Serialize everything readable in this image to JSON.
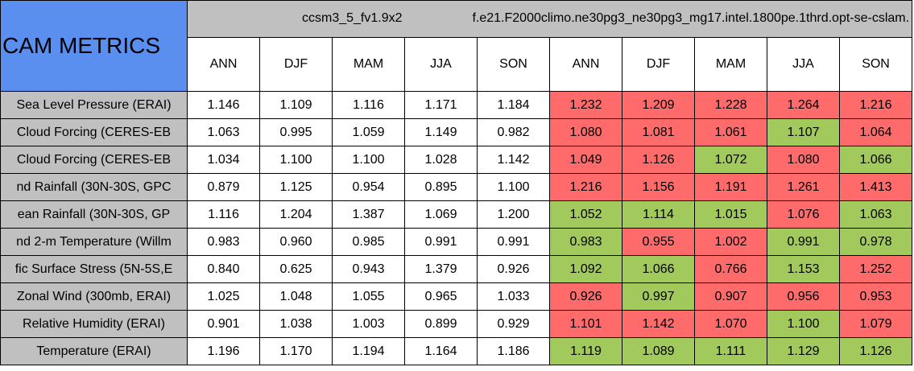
{
  "header": {
    "title": "CAM METRICS",
    "cases": [
      "ccsm3_5_fv1.9x2",
      "f.e21.F2000climo.ne30pg3_ne30pg3_mg17.intel.1800pe.1thrd.opt-se-cslam."
    ],
    "seasons": [
      "ANN",
      "DJF",
      "MAM",
      "JJA",
      "SON",
      "ANN",
      "DJF",
      "MAM",
      "JJA",
      "SON"
    ]
  },
  "table": {
    "rows": [
      {
        "label": "Sea Level Pressure (ERAI)",
        "values": [
          "1.146",
          "1.109",
          "1.116",
          "1.171",
          "1.184",
          "1.232",
          "1.209",
          "1.228",
          "1.264",
          "1.216"
        ],
        "colors": [
          "#ff6b6b",
          "#ff6b6b",
          "#ff6b6b",
          "#ff6b6b",
          "#ff6b6b"
        ]
      },
      {
        "label": "Cloud Forcing (CERES-EB",
        "values": [
          "1.063",
          "0.995",
          "1.059",
          "1.149",
          "0.982",
          "1.080",
          "1.081",
          "1.061",
          "1.107",
          "1.064"
        ],
        "colors": [
          "#ff6b6b",
          "#ff6b6b",
          "#ff6b6b",
          "#a2c95b",
          "#ff6b6b"
        ]
      },
      {
        "label": "Cloud Forcing (CERES-EB",
        "values": [
          "1.034",
          "1.100",
          "1.100",
          "1.028",
          "1.142",
          "1.049",
          "1.126",
          "1.072",
          "1.080",
          "1.066"
        ],
        "colors": [
          "#ff6b6b",
          "#ff6b6b",
          "#a2c95b",
          "#ff6b6b",
          "#a2c95b"
        ]
      },
      {
        "label": "nd Rainfall (30N-30S, GPC",
        "values": [
          "0.879",
          "1.125",
          "0.954",
          "0.895",
          "1.100",
          "1.216",
          "1.156",
          "1.191",
          "1.261",
          "1.413"
        ],
        "colors": [
          "#ff6b6b",
          "#ff6b6b",
          "#ff6b6b",
          "#ff6b6b",
          "#ff6b6b"
        ]
      },
      {
        "label": "ean Rainfall (30N-30S, GP",
        "values": [
          "1.116",
          "1.204",
          "1.387",
          "1.069",
          "1.200",
          "1.052",
          "1.114",
          "1.015",
          "1.076",
          "1.063"
        ],
        "colors": [
          "#a2c95b",
          "#a2c95b",
          "#a2c95b",
          "#ff6b6b",
          "#a2c95b"
        ]
      },
      {
        "label": "nd 2-m Temperature (Willm",
        "values": [
          "0.983",
          "0.960",
          "0.985",
          "0.991",
          "0.991",
          "0.983",
          "0.955",
          "1.002",
          "0.991",
          "0.978"
        ],
        "colors": [
          "#a2c95b",
          "#ff6b6b",
          "#ff6b6b",
          "#a2c95b",
          "#a2c95b"
        ]
      },
      {
        "label": "fic Surface Stress (5N-5S,E",
        "values": [
          "0.840",
          "0.625",
          "0.943",
          "1.379",
          "0.926",
          "1.092",
          "1.066",
          "0.766",
          "1.153",
          "1.252"
        ],
        "colors": [
          "#a2c95b",
          "#a2c95b",
          "#ff6b6b",
          "#a2c95b",
          "#ff6b6b"
        ]
      },
      {
        "label": "Zonal Wind (300mb, ERAI)",
        "values": [
          "1.025",
          "1.048",
          "1.055",
          "0.965",
          "1.033",
          "0.926",
          "0.997",
          "0.907",
          "0.956",
          "0.953"
        ],
        "colors": [
          "#ff6b6b",
          "#a2c95b",
          "#ff6b6b",
          "#ff6b6b",
          "#ff6b6b"
        ]
      },
      {
        "label": "Relative Humidity (ERAI)",
        "values": [
          "0.901",
          "1.038",
          "1.003",
          "0.899",
          "0.929",
          "1.101",
          "1.142",
          "1.070",
          "1.100",
          "1.079"
        ],
        "colors": [
          "#ff6b6b",
          "#ff6b6b",
          "#ff6b6b",
          "#a2c95b",
          "#ff6b6b"
        ]
      },
      {
        "label": "Temperature (ERAI)",
        "values": [
          "1.196",
          "1.170",
          "1.194",
          "1.164",
          "1.186",
          "1.119",
          "1.089",
          "1.111",
          "1.129",
          "1.126"
        ],
        "colors": [
          "#a2c95b",
          "#a2c95b",
          "#a2c95b",
          "#a2c95b",
          "#a2c95b"
        ]
      }
    ]
  }
}
